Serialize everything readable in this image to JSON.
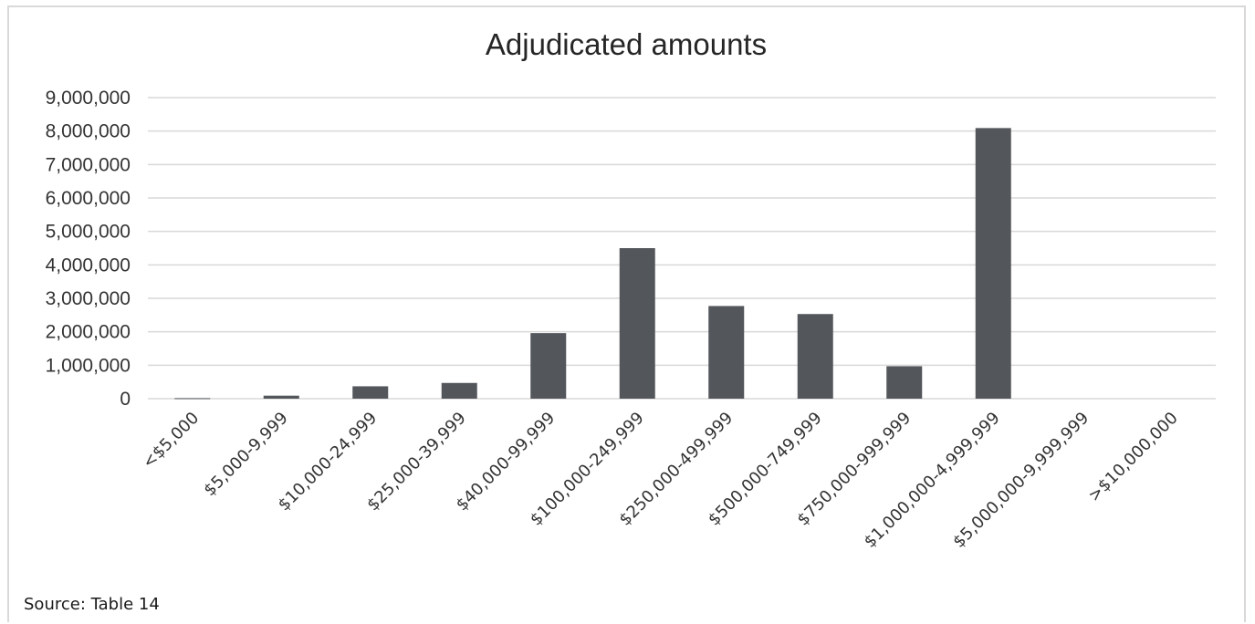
{
  "chart_data": {
    "type": "bar",
    "title": "Adjudicated amounts",
    "xlabel": "",
    "ylabel": "",
    "ylim": [
      0,
      9000000
    ],
    "y_ticks": [
      "0",
      "1,000,000",
      "2,000,000",
      "3,000,000",
      "4,000,000",
      "5,000,000",
      "6,000,000",
      "7,000,000",
      "8,000,000",
      "9,000,000"
    ],
    "y_tick_values": [
      0,
      1000000,
      2000000,
      3000000,
      4000000,
      5000000,
      6000000,
      7000000,
      8000000,
      9000000
    ],
    "grid": true,
    "categories": [
      "<$5,000",
      "$5,000-9,999",
      "$10,000-24,999",
      "$25,000-39,999",
      "$40,000-99,999",
      "$100,000-249,999",
      "$250,000-499,999",
      "$500,000-749,999",
      "$750,000-999,999",
      "$1,000,000-4,999,999",
      "$5,000,000-9,999,999",
      ">$10,000,000"
    ],
    "values": [
      15000,
      90000,
      370000,
      470000,
      1960000,
      4500000,
      2770000,
      2530000,
      970000,
      8090000,
      0,
      0
    ],
    "bar_color": "#53565a"
  },
  "source_note": "Source: Table 14"
}
